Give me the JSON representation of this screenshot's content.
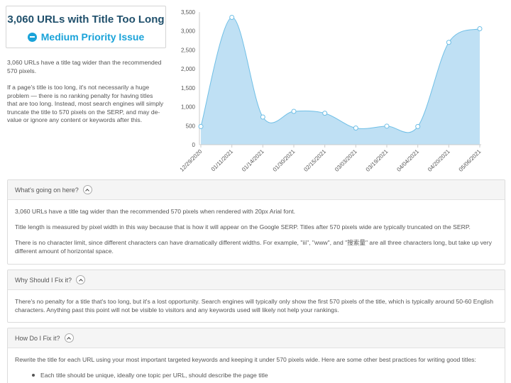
{
  "issue": {
    "title": "3,060 URLs with Title Too Long",
    "priority": "Medium Priority Issue"
  },
  "intro": {
    "p1": "3,060 URLs have a title tag wider than the recommended 570 pixels.",
    "p2": "If a page's title is too long, it's not necessarily a huge problem — there is no ranking penalty for having titles that are too long. Instead, most search engines will simply truncate the title to 570 pixels on the SERP, and may de-value or ignore any content or keywords after this."
  },
  "chart_data": {
    "type": "area",
    "x": [
      "12/29/2020",
      "01/11/2021",
      "01/14/2021",
      "01/30/2021",
      "02/15/2021",
      "03/03/2021",
      "03/19/2021",
      "04/04/2021",
      "04/20/2021",
      "05/06/2021"
    ],
    "values": [
      480,
      3360,
      730,
      880,
      830,
      440,
      490,
      480,
      2700,
      3060
    ],
    "y_ticks": [
      "0",
      "500",
      "1,000",
      "1,500",
      "2,000",
      "2,500",
      "3,000",
      "3,500"
    ],
    "ylim": [
      0,
      3500
    ],
    "grid": false,
    "color": "#a9d6f0",
    "line_color": "#6fbfe6"
  },
  "panels": [
    {
      "title": "What's going on here?",
      "paragraphs": [
        "3,060 URLs have a title tag wider than the recommended 570 pixels when rendered with 20px Arial font.",
        "Title length is measured by pixel width in this way because that is how it will appear on the Google SERP. Titles after 570 pixels wide are typically truncated on the SERP.",
        "There is no character limit, since different characters can have dramatically different widths. For example, \"iii\", \"www\", and \"搜索量\" are all three characters long, but take up very different amount of horizontal space."
      ]
    },
    {
      "title": "Why Should I Fix it?",
      "paragraphs": [
        "There's no penalty for a title that's too long, but it's a lost opportunity. Search engines will typically only show the first 570 pixels of the title, which is typically around 50-60 English characters. Anything past this point will not be visible to visitors and any keywords used will likely not help your rankings."
      ]
    },
    {
      "title": "How Do I Fix it?",
      "paragraphs": [
        "Rewrite the title for each URL using your most important targeted keywords and keeping it under 570 pixels wide. Here are some other best practices for writing good titles:"
      ],
      "bullets": [
        "Each title should be unique, ideally one topic per URL, should describe the page title"
      ]
    }
  ]
}
